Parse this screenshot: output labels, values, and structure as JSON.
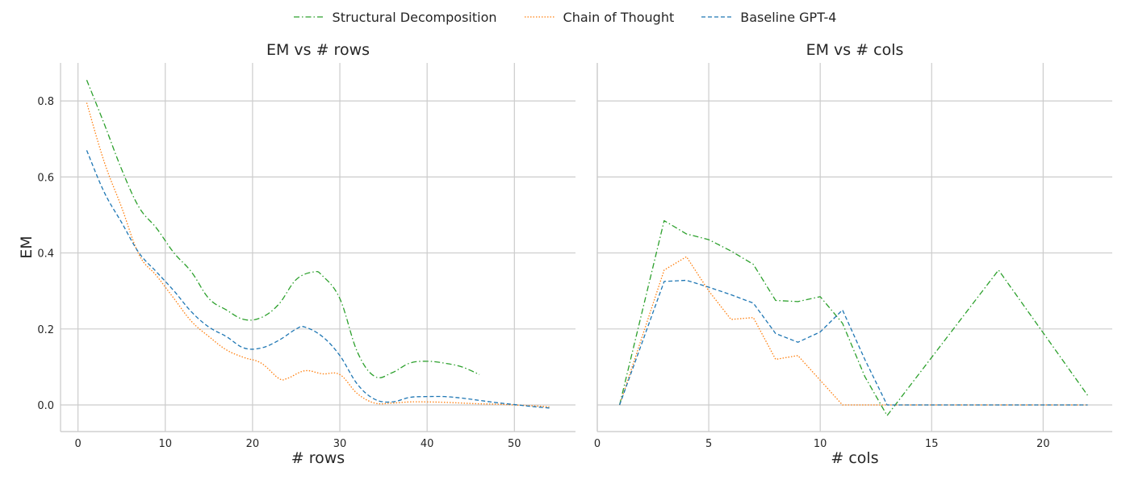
{
  "legend": [
    {
      "name": "Structural Decomposition",
      "color": "#2ca02c",
      "dash": "dashdot"
    },
    {
      "name": "Chain of Thought",
      "color": "#ff7f0e",
      "dash": "dotted"
    },
    {
      "name": "Baseline GPT-4",
      "color": "#1f77b4",
      "dash": "dashed"
    }
  ],
  "chart_data": [
    {
      "type": "line",
      "title": "EM vs # rows",
      "xlabel": "# rows",
      "ylabel": "EM",
      "xlim": [
        -2,
        57
      ],
      "ylim": [
        -0.07,
        0.9
      ],
      "xticks": [
        0,
        10,
        20,
        30,
        40,
        50
      ],
      "xtick_labels": [
        "0",
        "10",
        "20",
        "30",
        "40",
        "50"
      ],
      "yticks": [
        0,
        0.2,
        0.4,
        0.6,
        0.8
      ],
      "ytick_labels": [
        "0.0",
        "0.2",
        "0.4",
        "0.6",
        "0.8"
      ],
      "grid": true,
      "series": [
        {
          "name": "Structural Decomposition",
          "x": [
            1,
            3,
            5,
            7,
            9,
            11,
            13,
            15,
            17,
            19,
            21,
            23,
            25,
            27,
            28,
            30,
            32,
            34,
            36,
            38,
            40,
            42,
            44,
            46
          ],
          "y": [
            0.855,
            0.74,
            0.62,
            0.52,
            0.465,
            0.4,
            0.35,
            0.28,
            0.25,
            0.225,
            0.23,
            0.265,
            0.33,
            0.35,
            0.34,
            0.28,
            0.14,
            0.075,
            0.085,
            0.11,
            0.115,
            0.11,
            0.1,
            0.08
          ]
        },
        {
          "name": "Chain of Thought",
          "x": [
            1,
            3,
            5,
            7,
            9,
            11,
            13,
            15,
            17,
            19,
            21,
            23,
            24,
            26,
            28,
            30,
            32,
            34,
            36,
            38,
            40,
            42,
            44,
            46,
            48,
            50,
            52,
            54
          ],
          "y": [
            0.795,
            0.64,
            0.52,
            0.395,
            0.34,
            0.28,
            0.22,
            0.18,
            0.145,
            0.125,
            0.11,
            0.07,
            0.07,
            0.09,
            0.082,
            0.08,
            0.03,
            0.005,
            0.005,
            0.008,
            0.008,
            0.007,
            0.005,
            0.003,
            0.002,
            0.0,
            -0.002,
            -0.005
          ]
        },
        {
          "name": "Baseline GPT-4",
          "x": [
            1,
            3,
            5,
            7,
            9,
            11,
            13,
            15,
            17,
            19,
            21,
            23,
            25,
            26,
            28,
            30,
            32,
            34,
            36,
            38,
            40,
            42,
            44,
            46,
            48,
            50,
            52,
            54
          ],
          "y": [
            0.67,
            0.56,
            0.48,
            0.4,
            0.35,
            0.3,
            0.245,
            0.205,
            0.18,
            0.15,
            0.15,
            0.17,
            0.2,
            0.205,
            0.18,
            0.13,
            0.055,
            0.015,
            0.008,
            0.02,
            0.022,
            0.022,
            0.018,
            0.012,
            0.006,
            0.001,
            -0.004,
            -0.008
          ]
        }
      ]
    },
    {
      "type": "line",
      "title": "EM vs # cols",
      "xlabel": "# cols",
      "ylabel": "",
      "xlim": [
        0,
        23.1
      ],
      "ylim": [
        -0.07,
        0.9
      ],
      "xticks": [
        0,
        5,
        10,
        15,
        20
      ],
      "xtick_labels": [
        "0",
        "5",
        "10",
        "15",
        "20"
      ],
      "yticks": [
        0,
        0.2,
        0.4,
        0.6,
        0.8
      ],
      "grid": true,
      "series": [
        {
          "name": "Structural Decomposition",
          "x": [
            1,
            3,
            4,
            5,
            6,
            7,
            8,
            9,
            10,
            11,
            12,
            13,
            18,
            22
          ],
          "y": [
            0.0,
            0.485,
            0.45,
            0.435,
            0.405,
            0.37,
            0.275,
            0.272,
            0.285,
            0.215,
            0.075,
            -0.028,
            0.355,
            0.025
          ]
        },
        {
          "name": "Chain of Thought",
          "x": [
            1,
            3,
            4,
            5,
            6,
            7,
            8,
            9,
            10,
            11,
            12,
            13,
            14,
            15,
            16,
            17,
            18,
            19,
            20,
            21,
            22
          ],
          "y": [
            0.0,
            0.355,
            0.39,
            0.3,
            0.225,
            0.23,
            0.12,
            0.13,
            0.065,
            0.0,
            0.0,
            0.0,
            0.0,
            0.0,
            0.0,
            0.0,
            0.0,
            0.0,
            0.0,
            0.0,
            0.0
          ]
        },
        {
          "name": "Baseline GPT-4",
          "x": [
            1,
            3,
            4,
            5,
            6,
            7,
            8,
            9,
            10,
            11,
            12,
            13,
            14,
            15,
            16,
            17,
            18,
            19,
            20,
            21,
            22
          ],
          "y": [
            0.0,
            0.325,
            0.328,
            0.31,
            0.29,
            0.268,
            0.188,
            0.165,
            0.192,
            0.25,
            0.12,
            0.0,
            0.0,
            0.0,
            0.0,
            0.0,
            0.0,
            0.0,
            0.0,
            0.0,
            0.0
          ]
        }
      ]
    }
  ]
}
